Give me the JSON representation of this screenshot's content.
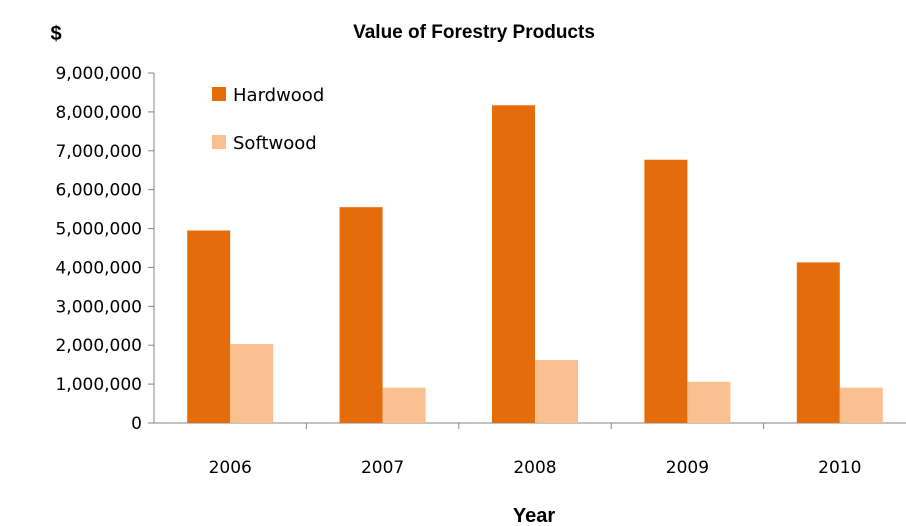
{
  "chart_data": {
    "type": "bar",
    "title": "Value of Forestry Products",
    "xlabel": "Year",
    "ylabel": "$",
    "categories": [
      "2006",
      "2007",
      "2008",
      "2009",
      "2010"
    ],
    "series": [
      {
        "name": "Hardwood",
        "color": "#E46C0A",
        "values": [
          4950000,
          5550000,
          8170000,
          6770000,
          4130000
        ]
      },
      {
        "name": "Softwood",
        "color": "#FAC090",
        "values": [
          2030000,
          910000,
          1620000,
          1060000,
          910000
        ]
      }
    ],
    "ylim": [
      0,
      9000000
    ],
    "yticks": [
      "0",
      "1,000,000",
      "2,000,000",
      "3,000,000",
      "4,000,000",
      "5,000,000",
      "6,000,000",
      "7,000,000",
      "8,000,000",
      "9,000,000"
    ],
    "grid": false,
    "legend_position": "top-left"
  }
}
